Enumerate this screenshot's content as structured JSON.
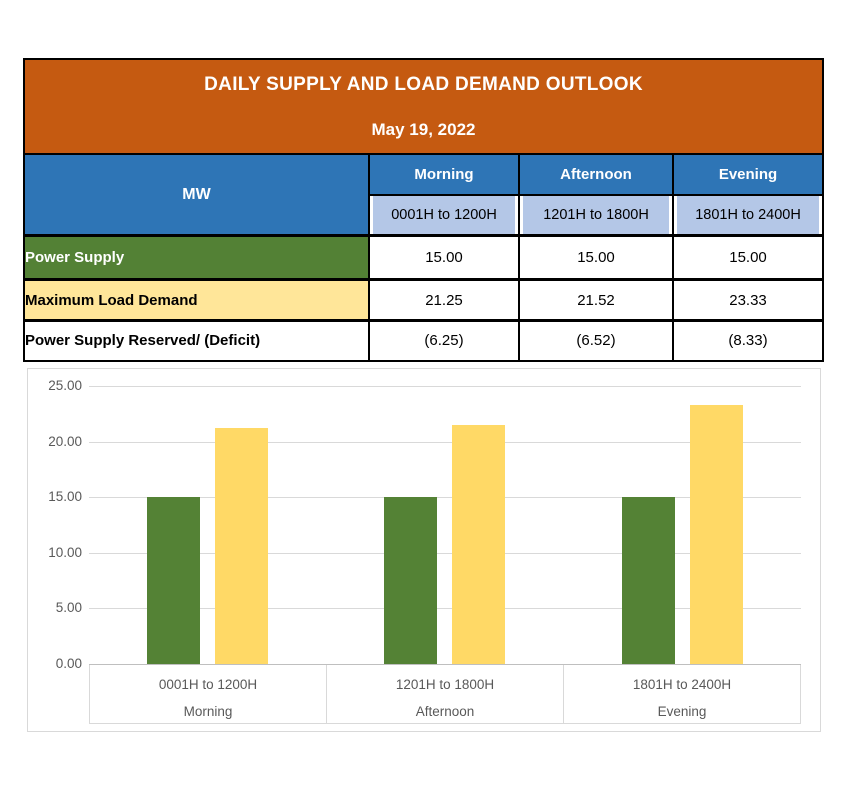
{
  "table": {
    "title": "DAILY SUPPLY AND LOAD DEMAND OUTLOOK",
    "date": "May 19, 2022",
    "unit_header": "MW",
    "columns": [
      {
        "period": "Morning",
        "hours": "0001H to 1200H"
      },
      {
        "period": "Afternoon",
        "hours": "1201H to 1800H"
      },
      {
        "period": "Evening",
        "hours": "1801H to 2400H"
      }
    ],
    "rows": [
      {
        "label": "Power Supply",
        "values": [
          "15.00",
          "15.00",
          "15.00"
        ]
      },
      {
        "label": "Maximum Load Demand",
        "values": [
          "21.25",
          "21.52",
          "23.33"
        ]
      },
      {
        "label": "Power Supply Reserved/ (Deficit)",
        "values": [
          "(6.25)",
          "(6.52)",
          "(8.33)"
        ]
      }
    ]
  },
  "chart_data": {
    "type": "bar",
    "title": "",
    "xlabel": "",
    "ylabel": "",
    "ylim": [
      0,
      25
    ],
    "ytick_step": 5,
    "yticks": [
      "25.00",
      "20.00",
      "15.00",
      "10.00",
      "5.00",
      "0.00"
    ],
    "grid": true,
    "legend_position": "none",
    "categories": [
      {
        "line1": "0001H to 1200H",
        "line2": "Morning"
      },
      {
        "line1": "1201H to 1800H",
        "line2": "Afternoon"
      },
      {
        "line1": "1801H to 2400H",
        "line2": "Evening"
      }
    ],
    "series": [
      {
        "name": "Power Supply",
        "color": "#548235",
        "values": [
          15.0,
          15.0,
          15.0
        ]
      },
      {
        "name": "Maximum Load Demand",
        "color": "#FFD966",
        "values": [
          21.25,
          21.52,
          23.33
        ]
      }
    ]
  },
  "colors": {
    "header_bg": "#C55A11",
    "col_header_bg": "#2E75B6",
    "col_subheader_bg": "#B4C7E7",
    "row_green_bg": "#538135",
    "row_yellow_bg": "#FFE699",
    "bar_green": "#548235",
    "bar_yellow": "#FFD966",
    "chart_text": "#595959",
    "gridline": "#D9D9D9"
  }
}
